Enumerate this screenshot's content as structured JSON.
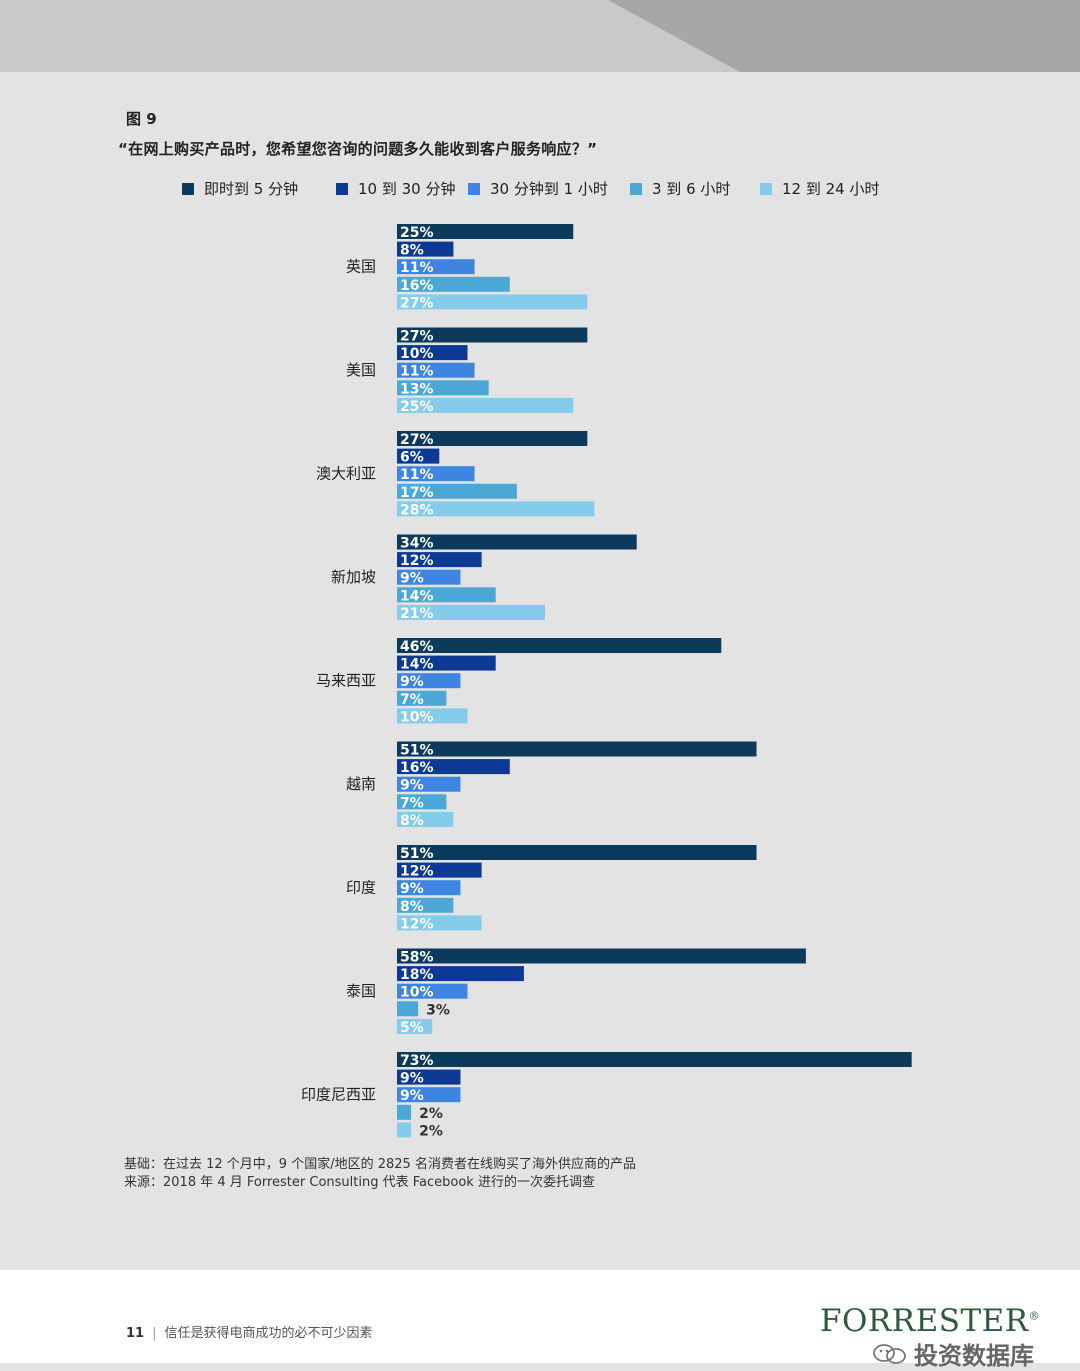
{
  "figure": {
    "label": "图 9",
    "question": "“在网上购买产品时，您希望您咨询的问题多久能收到客户服务响应？”"
  },
  "colors": {
    "series": [
      "#0c3a5c",
      "#0b3993",
      "#3d85e0",
      "#4ba8d6",
      "#85cbeb"
    ],
    "background": "#e3e3e3",
    "top_band_light": "#c9c9c9",
    "top_band_dark": "#a7a7a7",
    "brand": "#2c5a3a"
  },
  "chart_data": {
    "type": "bar",
    "orientation": "horizontal",
    "categories": [
      "英国",
      "美国",
      "澳大利亚",
      "新加坡",
      "马来西亚",
      "越南",
      "印度",
      "泰国",
      "印度尼西亚"
    ],
    "series": [
      {
        "name": "即时到 5 分钟",
        "values": [
          25,
          27,
          27,
          34,
          46,
          51,
          51,
          58,
          73
        ]
      },
      {
        "name": "10 到 30 分钟",
        "values": [
          8,
          10,
          6,
          12,
          14,
          16,
          12,
          18,
          9
        ]
      },
      {
        "name": "30 分钟到 1 小时",
        "values": [
          11,
          11,
          11,
          9,
          9,
          9,
          9,
          10,
          9
        ]
      },
      {
        "name": "3 到 6 小时",
        "values": [
          16,
          13,
          17,
          14,
          7,
          7,
          8,
          3,
          2
        ]
      },
      {
        "name": "12 到 24 小时",
        "values": [
          27,
          25,
          28,
          21,
          10,
          8,
          12,
          5,
          2
        ]
      }
    ],
    "value_suffix": "%",
    "xlim": [
      0,
      75
    ],
    "grid": false,
    "legend_position": "top"
  },
  "notes": {
    "base": "基础：在过去 12 个月中，9 个国家/地区的 2825 名消费者在线购买了海外供应商的产品",
    "source": "来源：2018 年 4 月 Forrester Consulting 代表 Facebook 进行的一次委托调查"
  },
  "footer": {
    "page_number": "11",
    "separator": "|",
    "doc_title": "信任是获得电商成功的必不可少因素",
    "brand": "FORRESTER",
    "brand_mark": "®",
    "watermark": "投资数据库",
    "watermark_icon": "wechat-icon"
  }
}
